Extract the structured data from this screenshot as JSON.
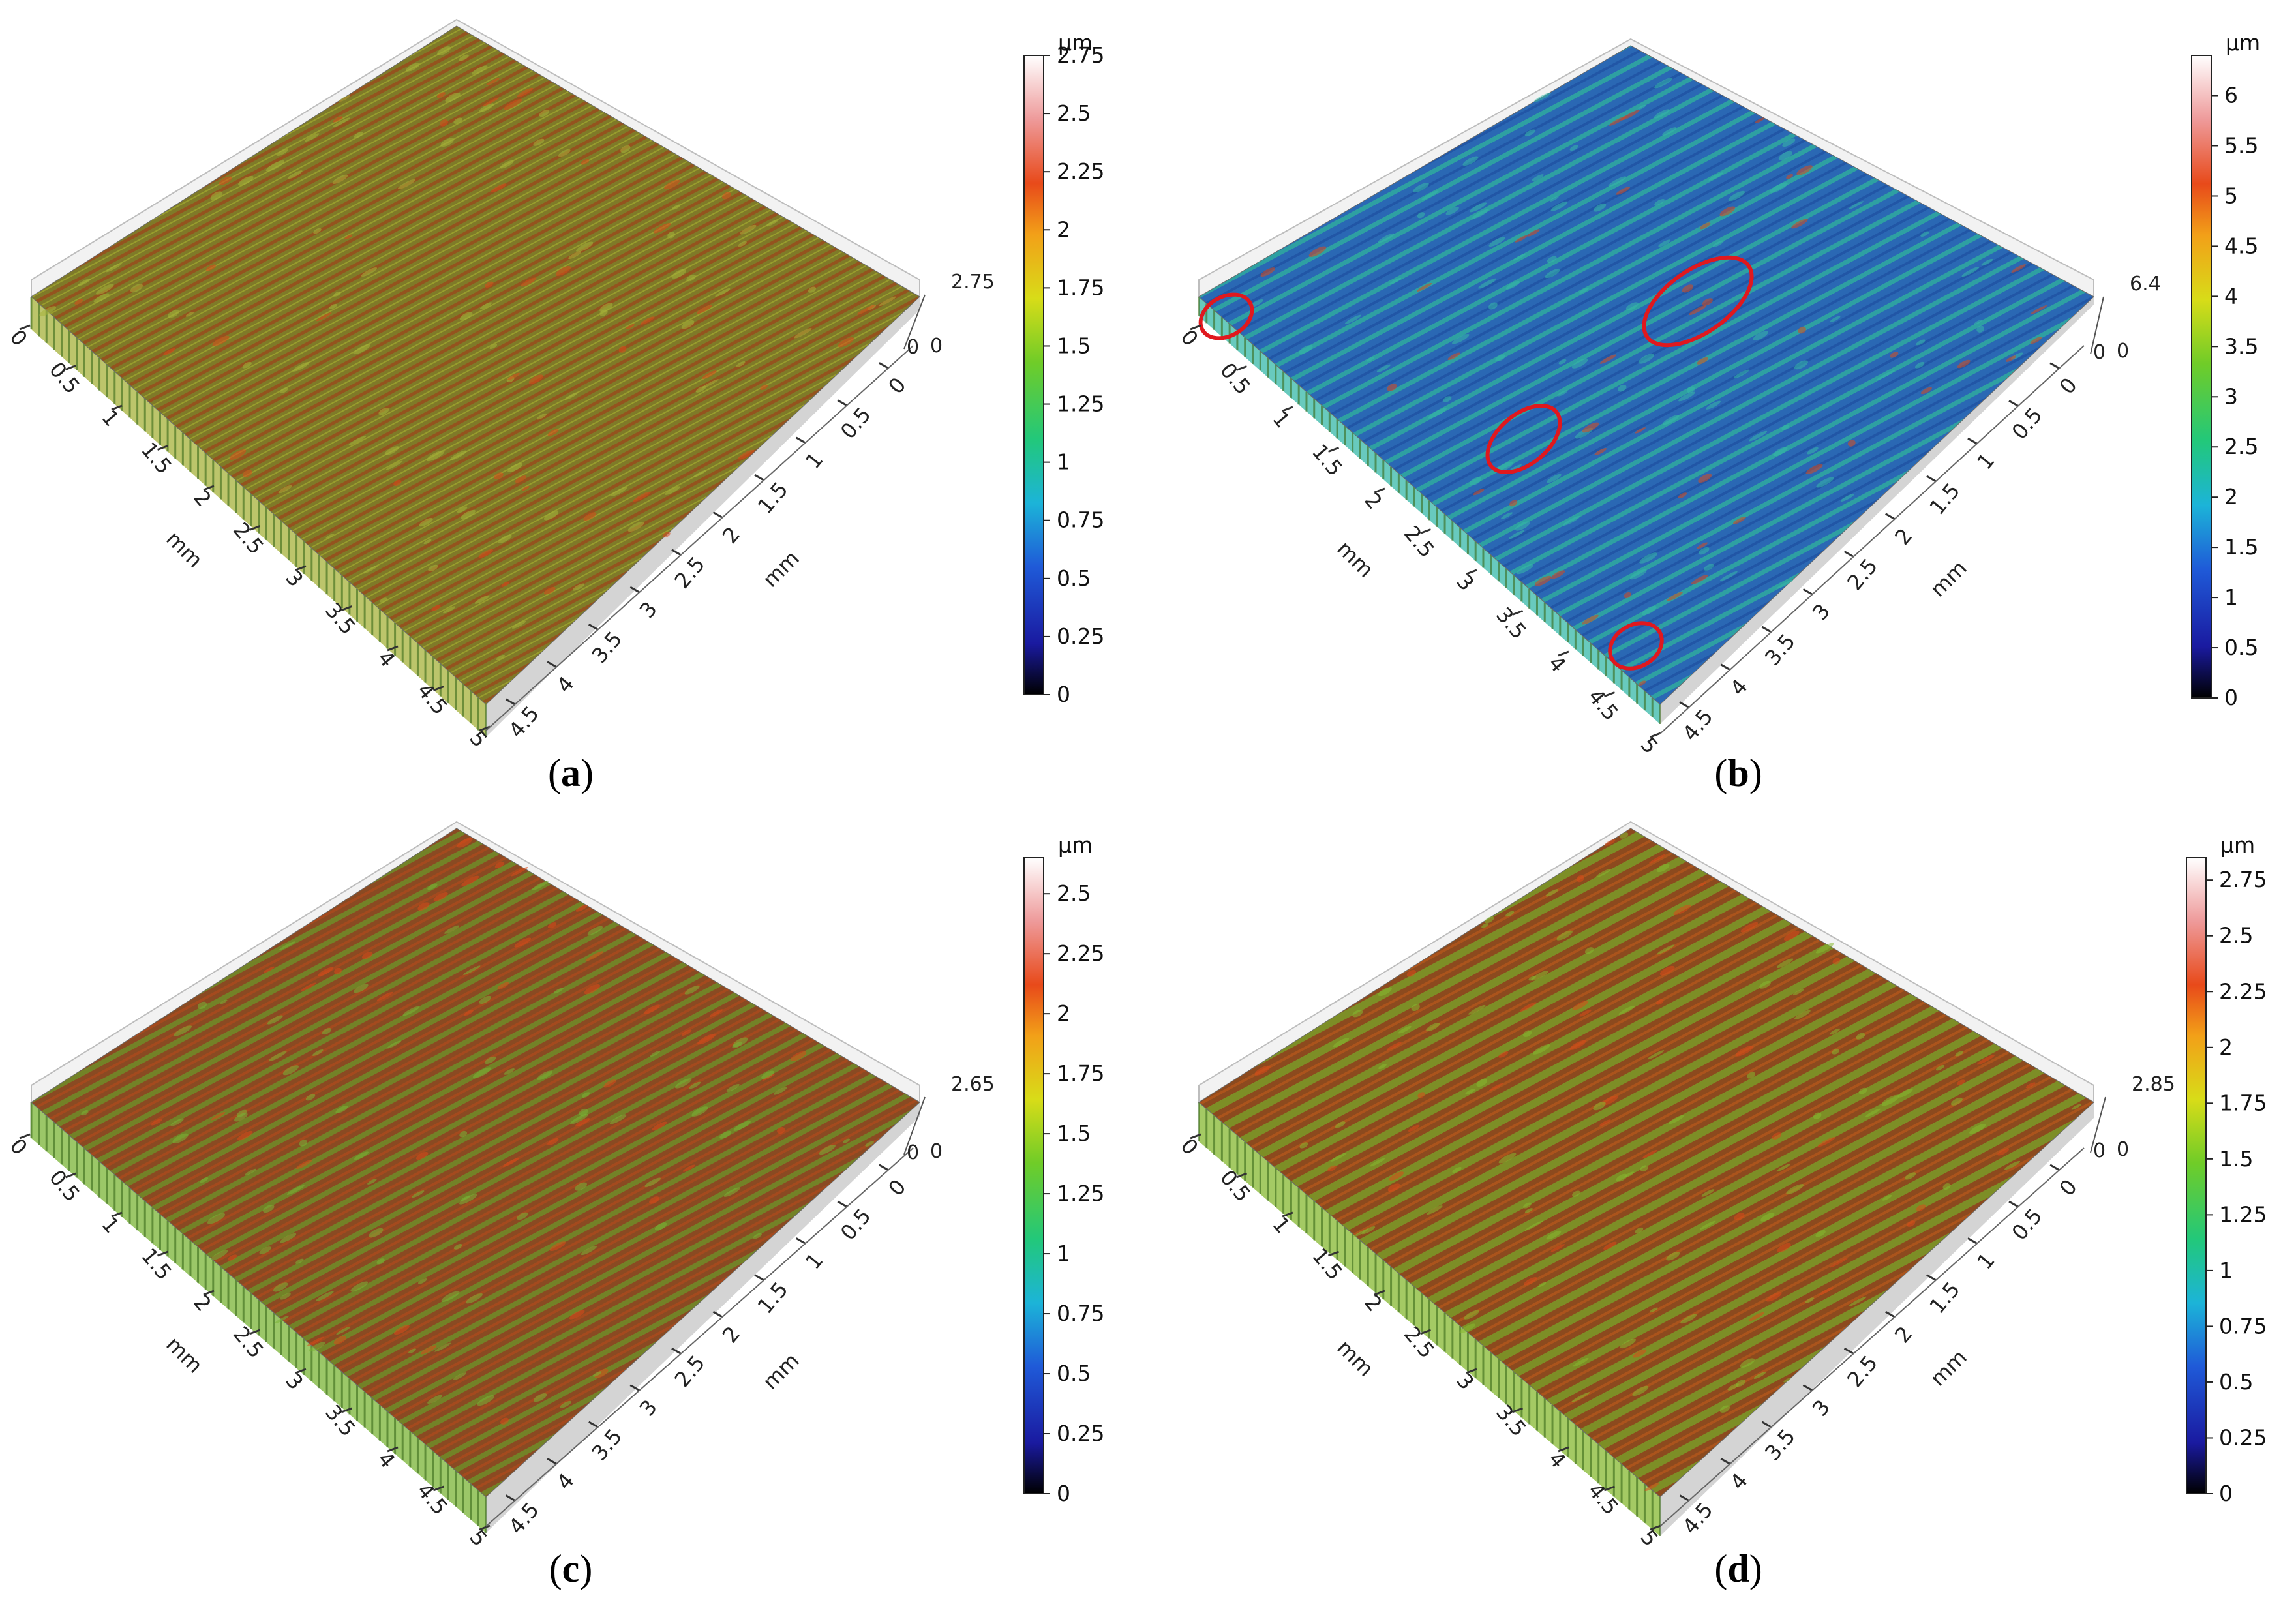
{
  "colors": {
    "panel_a": "#7f7a28",
    "panel_b": "#2d72b8",
    "panel_c": "#8a5a2a",
    "panel_d": "#8a6a28",
    "highlight": "#e0181e",
    "stripe_dark": "#5a3a18",
    "stripe_light": "#7cb83a"
  },
  "chart_data": [
    {
      "type": "heatmap",
      "panel": "a",
      "caption": "a",
      "x_ticks": [
        "0",
        "0.5",
        "1",
        "1.5",
        "2",
        "2.5",
        "3",
        "3.5",
        "4",
        "4.5",
        "5"
      ],
      "y_ticks": [
        "0",
        "0.5",
        "1",
        "1.5",
        "2",
        "2.5",
        "3",
        "3.5",
        "4",
        "4.5"
      ],
      "x_unit": "mm",
      "y_unit": "mm",
      "z_ticks": [
        "0",
        "2.75"
      ],
      "colorbar_unit": "µm",
      "colorbar_ticks": [
        "0",
        "0.25",
        "0.5",
        "0.75",
        "1",
        "1.25",
        "1.5",
        "1.75",
        "2",
        "2.25",
        "2.5",
        "2.75"
      ],
      "colorbar_range": [
        0,
        2.75
      ]
    },
    {
      "type": "heatmap",
      "panel": "b",
      "caption": "b",
      "x_ticks": [
        "0",
        "0.5",
        "1",
        "1.5",
        "2",
        "2.5",
        "3",
        "3.5",
        "4",
        "4.5",
        "5"
      ],
      "y_ticks": [
        "0",
        "0.5",
        "1",
        "1.5",
        "2",
        "2.5",
        "3",
        "3.5",
        "4",
        "4.5"
      ],
      "x_unit": "mm",
      "y_unit": "mm",
      "z_ticks": [
        "0",
        "6.4"
      ],
      "colorbar_unit": "µm",
      "colorbar_ticks": [
        "0",
        "0.5",
        "1",
        "1.5",
        "2",
        "2.5",
        "3",
        "3.5",
        "4",
        "4.5",
        "5",
        "5.5",
        "6"
      ],
      "colorbar_range": [
        0,
        6.4
      ],
      "highlights": 4
    },
    {
      "type": "heatmap",
      "panel": "c",
      "caption": "c",
      "x_ticks": [
        "0",
        "0.5",
        "1",
        "1.5",
        "2",
        "2.5",
        "3",
        "3.5",
        "4",
        "4.5",
        "5"
      ],
      "y_ticks": [
        "0",
        "0.5",
        "1",
        "1.5",
        "2",
        "2.5",
        "3",
        "3.5",
        "4",
        "4.5"
      ],
      "x_unit": "mm",
      "y_unit": "mm",
      "z_ticks": [
        "0",
        "2.65"
      ],
      "colorbar_unit": "µm",
      "colorbar_ticks": [
        "0",
        "0.25",
        "0.5",
        "0.75",
        "1",
        "1.25",
        "1.5",
        "1.75",
        "2",
        "2.25",
        "2.5"
      ],
      "colorbar_range": [
        0,
        2.65
      ]
    },
    {
      "type": "heatmap",
      "panel": "d",
      "caption": "d",
      "x_ticks": [
        "0",
        "0.5",
        "1",
        "1.5",
        "2",
        "2.5",
        "3",
        "3.5",
        "4",
        "4.5",
        "5"
      ],
      "y_ticks": [
        "0",
        "0.5",
        "1",
        "1.5",
        "2",
        "2.5",
        "3",
        "3.5",
        "4",
        "4.5"
      ],
      "x_unit": "mm",
      "y_unit": "mm",
      "z_ticks": [
        "0",
        "2.85"
      ],
      "colorbar_unit": "µm",
      "colorbar_ticks": [
        "0",
        "0.25",
        "0.5",
        "0.75",
        "1",
        "1.25",
        "1.5",
        "1.75",
        "2",
        "2.25",
        "2.5",
        "2.75"
      ],
      "colorbar_range": [
        0,
        2.85
      ]
    }
  ]
}
